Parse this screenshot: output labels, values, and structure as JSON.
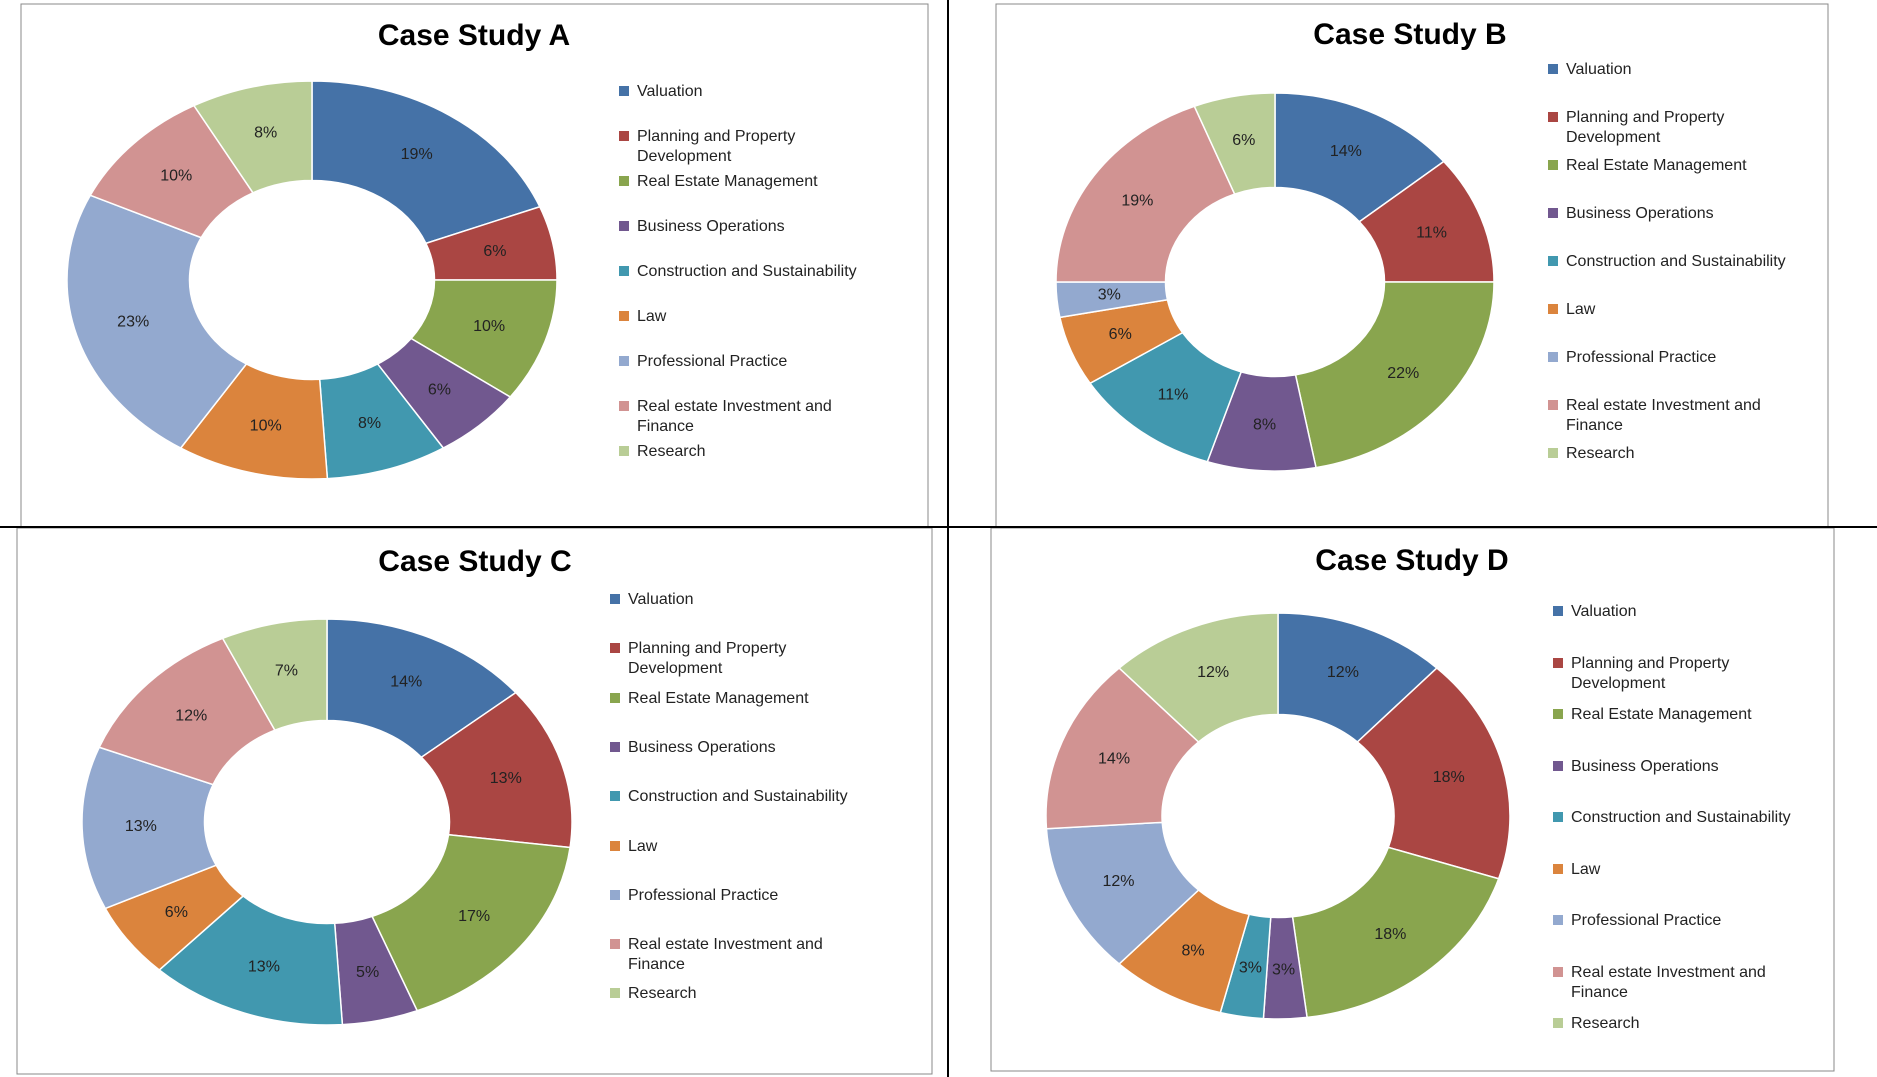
{
  "chart_data": [
    {
      "type": "pie",
      "title": "Case Study A",
      "categories": [
        "Valuation",
        "Planning and Property Development",
        "Real Estate Management",
        "Business Operations",
        "Construction and Sustainability",
        "Law",
        "Professional Practice",
        "Real estate Investment and Finance",
        "Research"
      ],
      "values": [
        19,
        6,
        10,
        6,
        8,
        10,
        23,
        10,
        8
      ],
      "value_labels": [
        "19%",
        "6%",
        "10%",
        "6%",
        "8%",
        "10%",
        "23%",
        "10%",
        "8%"
      ],
      "colors": [
        "#4572a7",
        "#aa4643",
        "#89a54e",
        "#71588f",
        "#4198af",
        "#db843d",
        "#93a9cf",
        "#d19392",
        "#b9cd96"
      ]
    },
    {
      "type": "pie",
      "title": "Case Study B",
      "categories": [
        "Valuation",
        "Planning and Property Development",
        "Real Estate Management",
        "Business Operations",
        "Construction and Sustainability",
        "Law",
        "Professional Practice",
        "Real estate Investment and Finance",
        "Research"
      ],
      "values": [
        14,
        11,
        22,
        8,
        11,
        6,
        3,
        19,
        6
      ],
      "value_labels": [
        "14%",
        "11%",
        "22%",
        "8%",
        "11%",
        "6%",
        "3%",
        "19%",
        "6%"
      ],
      "colors": [
        "#4572a7",
        "#aa4643",
        "#89a54e",
        "#71588f",
        "#4198af",
        "#db843d",
        "#93a9cf",
        "#d19392",
        "#b9cd96"
      ]
    },
    {
      "type": "pie",
      "title": "Case Study C",
      "categories": [
        "Valuation",
        "Planning and Property Development",
        "Real Estate Management",
        "Business Operations",
        "Construction and Sustainability",
        "Law",
        "Professional Practice",
        "Real estate Investment and Finance",
        "Research"
      ],
      "values": [
        14,
        13,
        17,
        5,
        13,
        6,
        13,
        12,
        7
      ],
      "value_labels": [
        "14%",
        "13%",
        "17%",
        "5%",
        "13%",
        "6%",
        "13%",
        "12%",
        "7%"
      ],
      "colors": [
        "#4572a7",
        "#aa4643",
        "#89a54e",
        "#71588f",
        "#4198af",
        "#db843d",
        "#93a9cf",
        "#d19392",
        "#b9cd96"
      ]
    },
    {
      "type": "pie",
      "title": "Case Study D",
      "categories": [
        "Valuation",
        "Planning and Property Development",
        "Real Estate Management",
        "Business Operations",
        "Construction and Sustainability",
        "Law",
        "Professional Practice",
        "Real estate Investment and Finance",
        "Research"
      ],
      "values": [
        12,
        18,
        18,
        3,
        3,
        8,
        12,
        14,
        12
      ],
      "value_labels": [
        "12%",
        "18%",
        "18%",
        "3%",
        "3%",
        "8%",
        "12%",
        "14%",
        "12%"
      ],
      "colors": [
        "#4572a7",
        "#aa4643",
        "#89a54e",
        "#71588f",
        "#4198af",
        "#db843d",
        "#93a9cf",
        "#d19392",
        "#b9cd96"
      ]
    }
  ]
}
